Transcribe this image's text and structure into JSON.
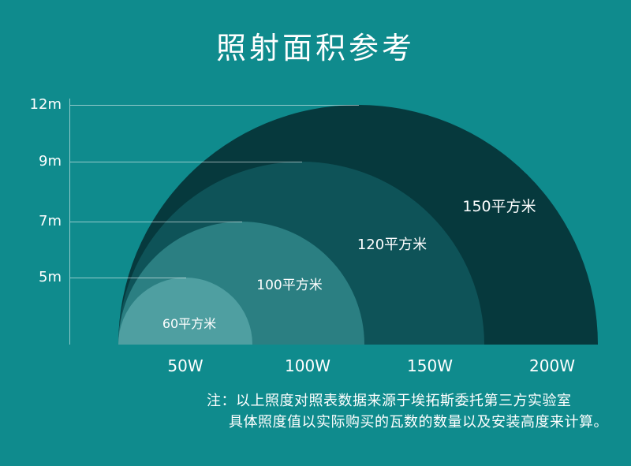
{
  "title": "照射面积参考",
  "colors": {
    "background": "#0f8b8d",
    "circle_150": "#06393d",
    "circle_120": "#0e5358",
    "circle_100": "#2b7f82",
    "circle_60": "#4f9fa1",
    "text": "#ffffff"
  },
  "chart_data": {
    "type": "area",
    "title": "照射面积参考",
    "description": "Nested semicircles showing illumination coverage area by lamp wattage and mounting height",
    "y_axis_labels": [
      "12m",
      "9m",
      "7m",
      "5m"
    ],
    "x_axis_labels": [
      "50W",
      "100W",
      "150W",
      "200W"
    ],
    "heights_m": [
      5,
      7,
      9,
      12
    ],
    "wattages_w": [
      50,
      100,
      150,
      200
    ],
    "areas_sqm": [
      60,
      100,
      120,
      150
    ],
    "series": [
      {
        "wattage": "50W",
        "height": "5m",
        "area_label": "60平方米",
        "area_sqm": 60
      },
      {
        "wattage": "100W",
        "height": "7m",
        "area_label": "100平方米",
        "area_sqm": 100
      },
      {
        "wattage": "150W",
        "height": "9m",
        "area_label": "120平方米",
        "area_sqm": 120
      },
      {
        "wattage": "200W",
        "height": "12m",
        "area_label": "150平方米",
        "area_sqm": 150
      }
    ],
    "legend_position": "none",
    "grid": "guide-lines-to-apex"
  },
  "note": {
    "line1": "注：以上照度对照表数据来源于埃拓斯委托第三方实验室",
    "line2": "具体照度值以实际购买的瓦数的数量以及安装高度来计算。"
  }
}
